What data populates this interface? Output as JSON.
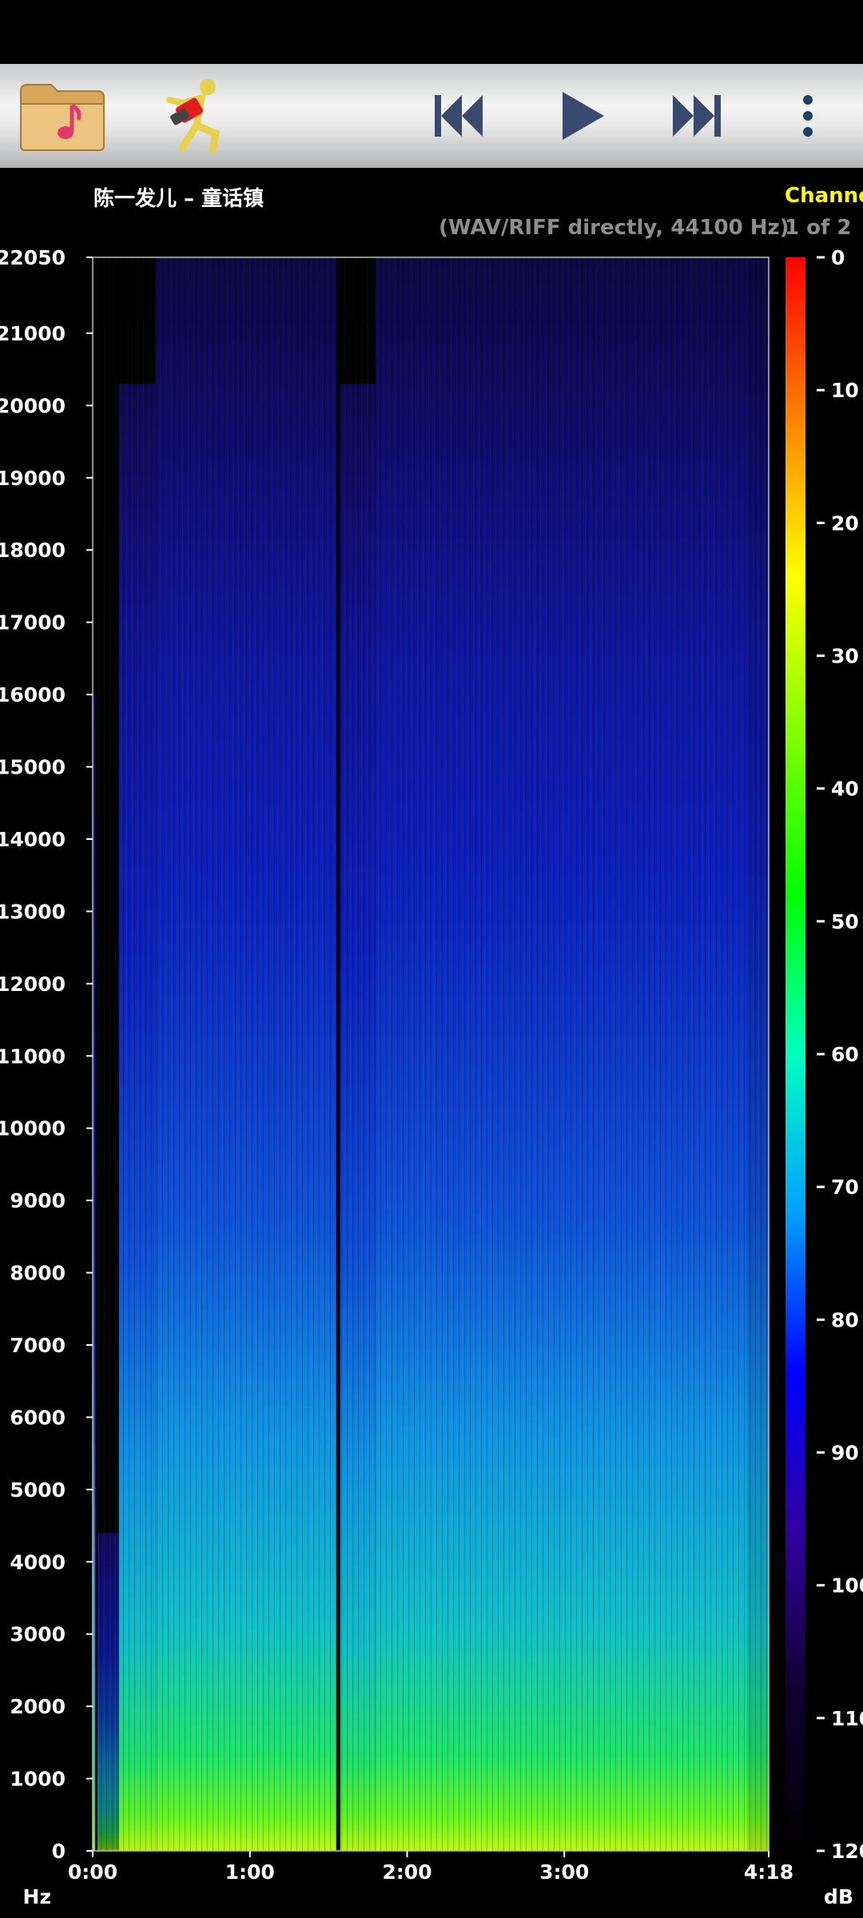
{
  "toolbar": {
    "folder_button_icon": "folder-music-icon",
    "mode_button_icon": "runner-icon",
    "prev_button_icon": "skip-previous-icon",
    "play_button_icon": "play-icon",
    "next_button_icon": "skip-next-icon",
    "menu_button_icon": "more-vert-icon"
  },
  "header": {
    "song_title": "陈一发儿 – 童话镇",
    "channel_label": "Channe",
    "format": "(WAV/RIFF directly, 44100 Hz)",
    "channel_count": "1 of 2"
  },
  "chart_data": {
    "type": "heatmap",
    "xlabel": "",
    "ylabel": "Hz",
    "colorbar_label": "dB",
    "x_ticks": [
      "0:00",
      "1:00",
      "2:00",
      "3:00",
      "4:18"
    ],
    "x_tick_seconds": [
      0,
      60,
      120,
      180,
      258
    ],
    "x_range_seconds": [
      0,
      258
    ],
    "y_ticks": [
      0,
      1000,
      2000,
      3000,
      4000,
      5000,
      6000,
      7000,
      8000,
      9000,
      10000,
      11000,
      12000,
      13000,
      14000,
      15000,
      16000,
      17000,
      18000,
      19000,
      20000,
      21000,
      22050
    ],
    "y_range_hz": [
      0,
      22050
    ],
    "colorbar_ticks": [
      "0",
      "10",
      "20",
      "30",
      "40",
      "50",
      "60",
      "70",
      "80",
      "90",
      "100",
      "110",
      "120"
    ],
    "colorbar_range_db": [
      0,
      -120
    ],
    "colorbar_colors": [
      "#ff0000",
      "#ff8000",
      "#ffff00",
      "#80ff00",
      "#00ff00",
      "#00ffc0",
      "#00a0ff",
      "#0000ff",
      "#3000a0",
      "#100030",
      "#000000"
    ],
    "segments": [
      {
        "start": 0.0,
        "end": 0.9,
        "level": 0.55,
        "cutoff": 16000
      },
      {
        "start": 0.9,
        "end": 1.8,
        "level": 0.0,
        "cutoff": 0
      },
      {
        "start": 1.8,
        "end": 10.0,
        "level": 0.25,
        "cutoff": 4400
      },
      {
        "start": 10.0,
        "end": 24.0,
        "level": 0.6,
        "cutoff": 20300
      },
      {
        "start": 24.0,
        "end": 93.0,
        "level": 0.62,
        "cutoff": 22050
      },
      {
        "start": 93.0,
        "end": 94.5,
        "level": 0.0,
        "cutoff": 0
      },
      {
        "start": 94.5,
        "end": 108.0,
        "level": 0.6,
        "cutoff": 20300
      },
      {
        "start": 108.0,
        "end": 250.0,
        "level": 0.62,
        "cutoff": 22050
      },
      {
        "start": 250.0,
        "end": 258.0,
        "level": 0.5,
        "cutoff": 22050
      }
    ]
  }
}
